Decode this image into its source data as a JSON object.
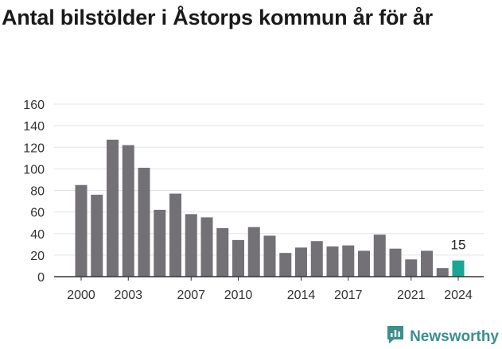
{
  "title": "Antal bilstölder i Åstorps kommun år för år",
  "brand": "Newsworthy",
  "colors": {
    "bar": "#737176",
    "highlight": "#1aa596",
    "grid": "#e3e3e3",
    "axis": "#333333"
  },
  "chart_data": {
    "type": "bar",
    "title": "Antal bilstölder i Åstorps kommun år för år",
    "xlabel": "",
    "ylabel": "",
    "ylim": [
      0,
      160
    ],
    "yticks": [
      "0",
      "20",
      "40",
      "60",
      "80",
      "100",
      "120",
      "140",
      "160"
    ],
    "xtick_labels": [
      "2000",
      "2003",
      "2007",
      "2010",
      "2014",
      "2017",
      "2021",
      "2024"
    ],
    "categories": [
      2000,
      2001,
      2002,
      2003,
      2004,
      2005,
      2006,
      2007,
      2008,
      2009,
      2010,
      2011,
      2012,
      2013,
      2014,
      2015,
      2016,
      2017,
      2018,
      2019,
      2020,
      2021,
      2022,
      2023,
      2024
    ],
    "values": [
      85,
      76,
      127,
      122,
      101,
      62,
      77,
      58,
      55,
      45,
      34,
      46,
      38,
      22,
      27,
      33,
      28,
      29,
      24,
      39,
      26,
      16,
      24,
      8,
      15
    ],
    "highlight": {
      "category": 2024,
      "label": "15"
    },
    "grid": true
  }
}
